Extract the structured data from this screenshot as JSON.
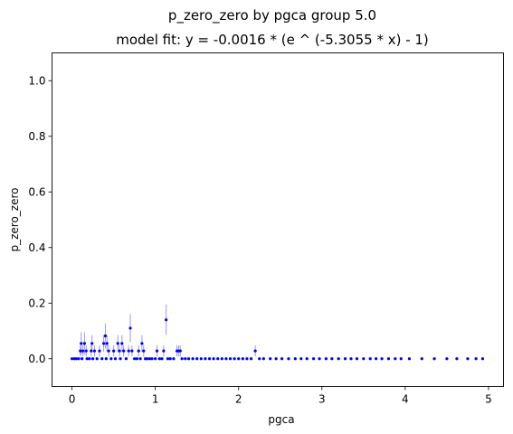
{
  "chart_data": {
    "type": "scatter",
    "title": "p_zero_zero by pgca group 5.0",
    "subtitle": "model fit: y = -0.0016 * (e ^ (-5.3055 * x) - 1)",
    "xlabel": "pgca",
    "ylabel": "p_zero_zero",
    "xlim": [
      -0.24,
      5.18
    ],
    "ylim": [
      -0.1,
      1.1
    ],
    "xticks": [
      0,
      1,
      2,
      3,
      4,
      5
    ],
    "yticks": [
      0.0,
      0.2,
      0.4,
      0.6,
      0.8,
      1.0
    ],
    "grid": false,
    "marker_color": "#0000ff",
    "errorbar_color": "#9a9af0",
    "fit": {
      "a": -0.0016,
      "b": -5.3055
    },
    "series": [
      {
        "marker": "o",
        "x": [
          0.0,
          0.03,
          0.05,
          0.08,
          0.1,
          0.11,
          0.12,
          0.13,
          0.15,
          0.17,
          0.18,
          0.21,
          0.23,
          0.24,
          0.25,
          0.27,
          0.3,
          0.33,
          0.36,
          0.38,
          0.4,
          0.41,
          0.42,
          0.44,
          0.47,
          0.5,
          0.52,
          0.55,
          0.57,
          0.58,
          0.6,
          0.62,
          0.65,
          0.68,
          0.7,
          0.72,
          0.75,
          0.78,
          0.8,
          0.82,
          0.84,
          0.86,
          0.88,
          0.9,
          0.93,
          0.96,
          1.0,
          1.02,
          1.05,
          1.08,
          1.1,
          1.13,
          1.15,
          1.18,
          1.22,
          1.26,
          1.28,
          1.3,
          1.32,
          1.36,
          1.4,
          1.45,
          1.5,
          1.55,
          1.6,
          1.65,
          1.7,
          1.75,
          1.8,
          1.85,
          1.9,
          1.95,
          2.0,
          2.05,
          2.1,
          2.15,
          2.2,
          2.25,
          2.3,
          2.38,
          2.45,
          2.52,
          2.6,
          2.68,
          2.75,
          2.82,
          2.9,
          2.97,
          3.05,
          3.12,
          3.2,
          3.28,
          3.35,
          3.42,
          3.5,
          3.58,
          3.65,
          3.72,
          3.8,
          3.88,
          3.95,
          4.05,
          4.2,
          4.35,
          4.5,
          4.62,
          4.75,
          4.85,
          4.93
        ],
        "y": [
          0.0,
          0.0,
          0.0,
          0.0,
          0.028,
          0.055,
          0.0,
          0.028,
          0.055,
          0.028,
          0.0,
          0.0,
          0.028,
          0.055,
          0.0,
          0.028,
          0.0,
          0.028,
          0.0,
          0.055,
          0.082,
          0.0,
          0.055,
          0.028,
          0.0,
          0.028,
          0.0,
          0.055,
          0.028,
          0.0,
          0.055,
          0.028,
          0.0,
          0.028,
          0.11,
          0.028,
          0.0,
          0.0,
          0.028,
          0.0,
          0.055,
          0.028,
          0.0,
          0.0,
          0.0,
          0.0,
          0.0,
          0.028,
          0.0,
          0.0,
          0.028,
          0.14,
          0.0,
          0.0,
          0.0,
          0.028,
          0.028,
          0.028,
          0.0,
          0.0,
          0.0,
          0.0,
          0.0,
          0.0,
          0.0,
          0.0,
          0.0,
          0.0,
          0.0,
          0.0,
          0.0,
          0.0,
          0.0,
          0.0,
          0.0,
          0.0,
          0.028,
          0.0,
          0.0,
          0.0,
          0.0,
          0.0,
          0.0,
          0.0,
          0.0,
          0.0,
          0.0,
          0.0,
          0.0,
          0.0,
          0.0,
          0.0,
          0.0,
          0.0,
          0.0,
          0.0,
          0.0,
          0.0,
          0.0,
          0.0,
          0.0,
          0.0,
          0.0,
          0.0,
          0.0,
          0.0,
          0.0,
          0.0,
          0.0
        ],
        "yerr": [
          0.0,
          0.0,
          0.0,
          0.0,
          0.02,
          0.04,
          0.0,
          0.02,
          0.04,
          0.02,
          0.0,
          0.0,
          0.02,
          0.03,
          0.0,
          0.02,
          0.0,
          0.02,
          0.0,
          0.03,
          0.045,
          0.0,
          0.03,
          0.02,
          0.0,
          0.02,
          0.0,
          0.03,
          0.02,
          0.0,
          0.03,
          0.02,
          0.0,
          0.02,
          0.05,
          0.02,
          0.0,
          0.0,
          0.02,
          0.0,
          0.03,
          0.02,
          0.0,
          0.0,
          0.0,
          0.0,
          0.0,
          0.02,
          0.0,
          0.0,
          0.02,
          0.055,
          0.0,
          0.0,
          0.0,
          0.02,
          0.02,
          0.02,
          0.0,
          0.0,
          0.0,
          0.0,
          0.0,
          0.0,
          0.0,
          0.0,
          0.0,
          0.0,
          0.0,
          0.0,
          0.0,
          0.0,
          0.0,
          0.0,
          0.0,
          0.0,
          0.02,
          0.0,
          0.0,
          0.0,
          0.0,
          0.0,
          0.0,
          0.0,
          0.0,
          0.0,
          0.0,
          0.0,
          0.0,
          0.0,
          0.0,
          0.0,
          0.0,
          0.0,
          0.0,
          0.0,
          0.0,
          0.0,
          0.0,
          0.0,
          0.0,
          0.0,
          0.0,
          0.0,
          0.0,
          0.0,
          0.0,
          0.0,
          0.0
        ]
      }
    ]
  }
}
